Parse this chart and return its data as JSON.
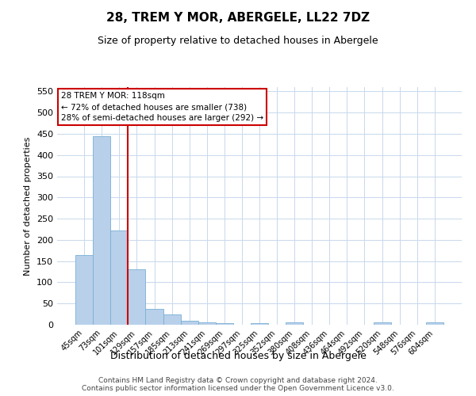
{
  "title": "28, TREM Y MOR, ABERGELE, LL22 7DZ",
  "subtitle": "Size of property relative to detached houses in Abergele",
  "xlabel": "Distribution of detached houses by size in Abergele",
  "ylabel": "Number of detached properties",
  "categories": [
    "45sqm",
    "73sqm",
    "101sqm",
    "129sqm",
    "157sqm",
    "185sqm",
    "213sqm",
    "241sqm",
    "269sqm",
    "297sqm",
    "325sqm",
    "352sqm",
    "380sqm",
    "408sqm",
    "436sqm",
    "464sqm",
    "492sqm",
    "520sqm",
    "548sqm",
    "576sqm",
    "604sqm"
  ],
  "values": [
    165,
    445,
    222,
    130,
    37,
    25,
    10,
    5,
    3,
    0,
    4,
    0,
    5,
    0,
    0,
    0,
    0,
    5,
    0,
    0,
    5
  ],
  "bar_color": "#b8d0ea",
  "bar_edge_color": "#7aaed4",
  "vline_x_index": 2.5,
  "vline_color": "#cc0000",
  "annotation_line1": "28 TREM Y MOR: 118sqm",
  "annotation_line2": "← 72% of detached houses are smaller (738)",
  "annotation_line3": "28% of semi-detached houses are larger (292) →",
  "annotation_box_color": "#cc0000",
  "ylim": [
    0,
    560
  ],
  "yticks": [
    0,
    50,
    100,
    150,
    200,
    250,
    300,
    350,
    400,
    450,
    500,
    550
  ],
  "footer_line1": "Contains HM Land Registry data © Crown copyright and database right 2024.",
  "footer_line2": "Contains public sector information licensed under the Open Government Licence v3.0.",
  "bg_color": "#ffffff",
  "grid_color": "#c8d8ec"
}
